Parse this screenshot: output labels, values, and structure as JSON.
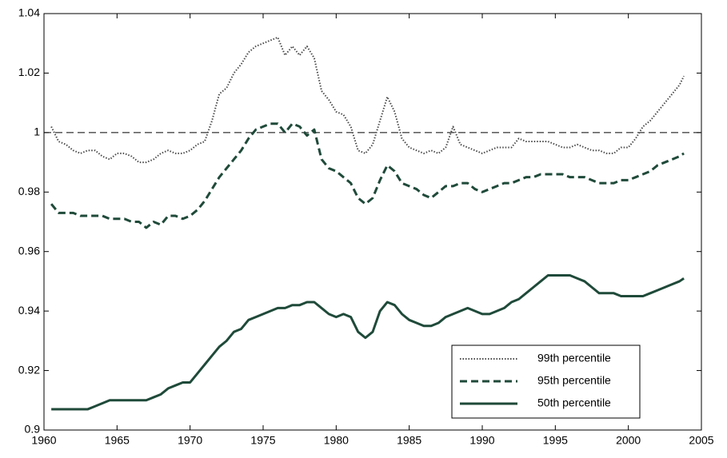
{
  "chart_data": {
    "type": "line",
    "x": [
      1960.5,
      1961,
      1961.5,
      1962,
      1962.5,
      1963,
      1963.5,
      1964,
      1964.5,
      1965,
      1965.5,
      1966,
      1966.5,
      1967,
      1967.5,
      1968,
      1968.5,
      1969,
      1969.5,
      1970,
      1970.5,
      1971,
      1971.5,
      1972,
      1972.5,
      1973,
      1973.5,
      1974,
      1974.5,
      1975,
      1975.5,
      1976,
      1976.5,
      1977,
      1977.5,
      1978,
      1978.5,
      1979,
      1979.5,
      1980,
      1980.5,
      1981,
      1981.5,
      1982,
      1982.5,
      1983,
      1983.5,
      1984,
      1984.5,
      1985,
      1985.5,
      1986,
      1986.5,
      1987,
      1987.5,
      1988,
      1988.5,
      1989,
      1989.5,
      1990,
      1990.5,
      1991,
      1991.5,
      1992,
      1992.5,
      1993,
      1993.5,
      1994,
      1994.5,
      1995,
      1995.5,
      1996,
      1996.5,
      1997,
      1997.5,
      1998,
      1998.5,
      1999,
      1999.5,
      2000,
      2000.5,
      2001,
      2001.5,
      2002,
      2002.5,
      2003,
      2003.5,
      2003.8
    ],
    "series": [
      {
        "name": "99th percentile",
        "color": "#4a4a4a",
        "style": "dotted",
        "values": [
          1.002,
          0.997,
          0.996,
          0.994,
          0.993,
          0.994,
          0.994,
          0.992,
          0.991,
          0.993,
          0.993,
          0.992,
          0.99,
          0.99,
          0.991,
          0.993,
          0.994,
          0.993,
          0.993,
          0.994,
          0.996,
          0.997,
          1.004,
          1.013,
          1.015,
          1.02,
          1.023,
          1.027,
          1.029,
          1.03,
          1.031,
          1.032,
          1.026,
          1.029,
          1.026,
          1.029,
          1.025,
          1.014,
          1.011,
          1.007,
          1.006,
          1.002,
          0.994,
          0.993,
          0.996,
          1.004,
          1.012,
          1.007,
          0.998,
          0.995,
          0.994,
          0.993,
          0.994,
          0.993,
          0.995,
          1.002,
          0.996,
          0.995,
          0.994,
          0.993,
          0.994,
          0.995,
          0.995,
          0.995,
          0.998,
          0.997,
          0.997,
          0.997,
          0.997,
          0.996,
          0.995,
          0.995,
          0.996,
          0.995,
          0.994,
          0.994,
          0.993,
          0.993,
          0.995,
          0.995,
          0.998,
          1.002,
          1.004,
          1.007,
          1.01,
          1.013,
          1.016,
          1.019
        ]
      },
      {
        "name": "95th percentile",
        "color": "#1f4a3a",
        "style": "dashed",
        "values": [
          0.976,
          0.973,
          0.973,
          0.973,
          0.972,
          0.972,
          0.972,
          0.972,
          0.971,
          0.971,
          0.971,
          0.97,
          0.97,
          0.968,
          0.97,
          0.969,
          0.972,
          0.972,
          0.971,
          0.972,
          0.974,
          0.977,
          0.981,
          0.985,
          0.988,
          0.991,
          0.994,
          0.998,
          1.001,
          1.002,
          1.003,
          1.003,
          1.0,
          1.003,
          1.002,
          0.999,
          1.001,
          0.991,
          0.988,
          0.987,
          0.985,
          0.983,
          0.978,
          0.976,
          0.978,
          0.984,
          0.989,
          0.987,
          0.983,
          0.982,
          0.981,
          0.979,
          0.978,
          0.98,
          0.982,
          0.982,
          0.983,
          0.983,
          0.981,
          0.98,
          0.981,
          0.982,
          0.983,
          0.983,
          0.984,
          0.985,
          0.985,
          0.986,
          0.986,
          0.986,
          0.986,
          0.985,
          0.985,
          0.985,
          0.984,
          0.983,
          0.983,
          0.983,
          0.984,
          0.984,
          0.985,
          0.986,
          0.987,
          0.989,
          0.99,
          0.991,
          0.992,
          0.993
        ]
      },
      {
        "name": "50th percentile",
        "color": "#1f4a3a",
        "style": "solid",
        "values": [
          0.907,
          0.907,
          0.907,
          0.907,
          0.907,
          0.907,
          0.908,
          0.909,
          0.91,
          0.91,
          0.91,
          0.91,
          0.91,
          0.91,
          0.911,
          0.912,
          0.914,
          0.915,
          0.916,
          0.916,
          0.919,
          0.922,
          0.925,
          0.928,
          0.93,
          0.933,
          0.934,
          0.937,
          0.938,
          0.939,
          0.94,
          0.941,
          0.941,
          0.942,
          0.942,
          0.943,
          0.943,
          0.941,
          0.939,
          0.938,
          0.939,
          0.938,
          0.933,
          0.931,
          0.933,
          0.94,
          0.943,
          0.942,
          0.939,
          0.937,
          0.936,
          0.935,
          0.935,
          0.936,
          0.938,
          0.939,
          0.94,
          0.941,
          0.94,
          0.939,
          0.939,
          0.94,
          0.941,
          0.943,
          0.944,
          0.946,
          0.948,
          0.95,
          0.952,
          0.952,
          0.952,
          0.952,
          0.951,
          0.95,
          0.948,
          0.946,
          0.946,
          0.946,
          0.945,
          0.945,
          0.945,
          0.945,
          0.946,
          0.947,
          0.948,
          0.949,
          0.95,
          0.951
        ]
      }
    ],
    "reference_line": {
      "value": 1,
      "color": "#000000",
      "style": "dashed"
    },
    "xlim": [
      1960,
      2005
    ],
    "xticks": [
      1960,
      1965,
      1970,
      1975,
      1980,
      1985,
      1990,
      1995,
      2000,
      2005
    ],
    "ylim": [
      0.9,
      1.04
    ],
    "yticks": [
      0.9,
      0.92,
      0.94,
      0.96,
      0.98,
      1,
      1.02,
      1.04
    ],
    "legend": "lower right",
    "grid": false
  }
}
